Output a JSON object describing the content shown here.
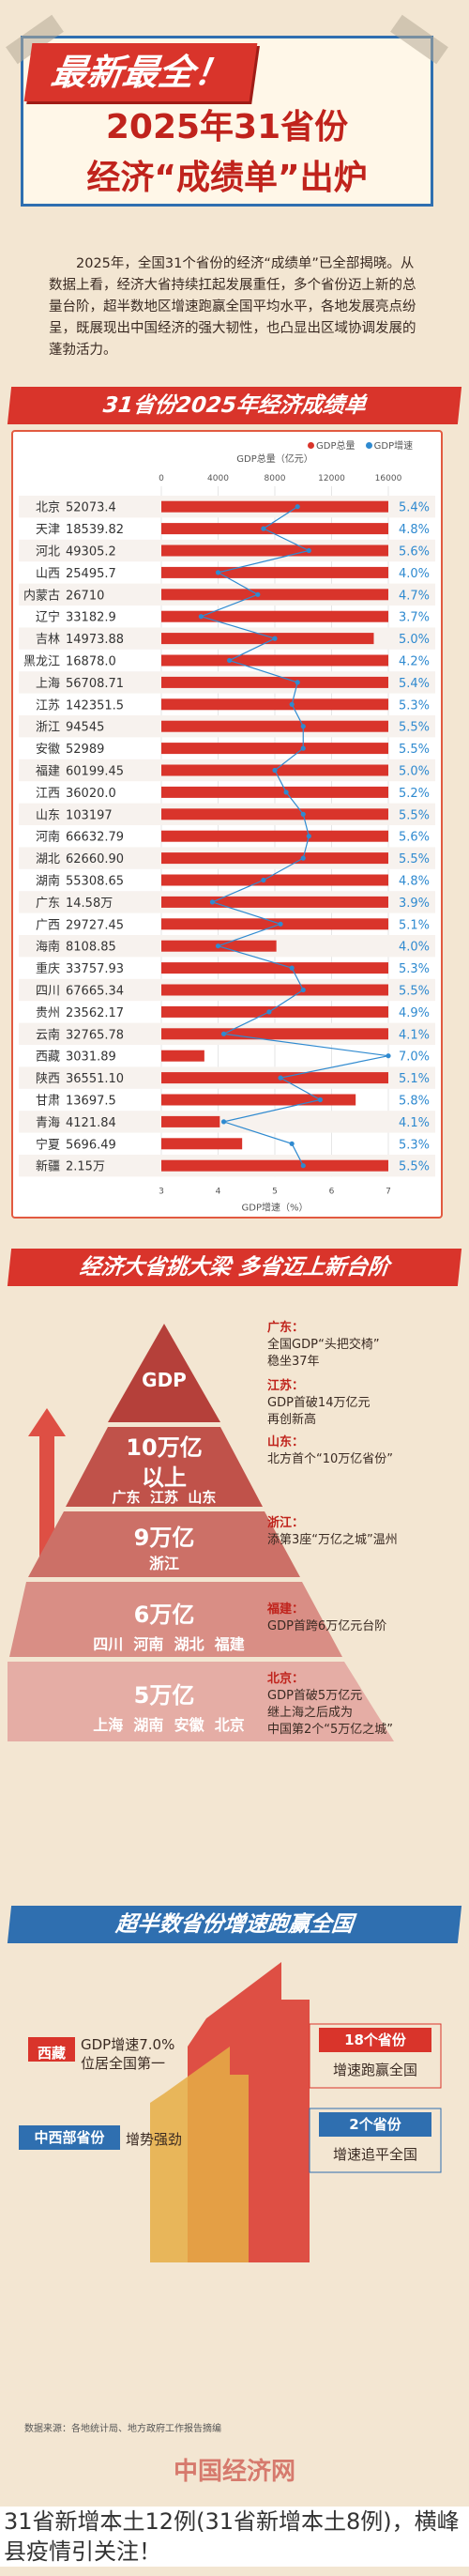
{
  "header": {
    "banner": "最新最全！",
    "title_line1": "2025年31省份",
    "title_line2": "经济“成绩单”出炉"
  },
  "intro": "2025年，全国31个省份的经济“成绩单”已全部揭晓。从数据上看，经济大省持续扛起发展重任，多个省份迈上新的总量台阶，超半数地区增速跑赢全国平均水平，各地发展亮点纷呈，既展现出中国经济的强大韧性，也凸显出区域协调发展的蓬勃活力。",
  "sections": {
    "chart_title": "31省份2025年经济成绩单",
    "pyramid_title": "经济大省挑大梁 多省迈上新台阶",
    "growth_title": "超半数省份增速跑赢全国"
  },
  "chart_data": {
    "type": "bar",
    "legend": [
      "GDP总量",
      "GDP增速"
    ],
    "xlabel_top": "GDP总量（亿元）",
    "xlabel_bottom": "GDP增速（%）",
    "top_ticks": [
      0,
      4000,
      8000,
      12000,
      16000
    ],
    "bottom_ticks": [
      3,
      4,
      5,
      6,
      7
    ],
    "categories": [
      "北京",
      "天津",
      "河北",
      "山西",
      "内蒙古",
      "辽宁",
      "吉林",
      "黑龙江",
      "上海",
      "江苏",
      "浙江",
      "安徽",
      "福建",
      "江西",
      "山东",
      "河南",
      "湖北",
      "湖南",
      "广东",
      "广西",
      "海南",
      "重庆",
      "四川",
      "贵州",
      "云南",
      "西藏",
      "陕西",
      "甘肃",
      "青海",
      "宁夏",
      "新疆"
    ],
    "gdp_labels": [
      "52073.4",
      "18539.82",
      "49305.2",
      "25495.7",
      "26710",
      "33182.9",
      "14973.88",
      "16878.0",
      "56708.71",
      "142351.5",
      "94545",
      "52989",
      "60199.45",
      "36020.0",
      "103197",
      "66632.79",
      "62660.90",
      "55308.65",
      "14.58万",
      "29727.45",
      "8108.85",
      "33757.93",
      "67665.34",
      "23562.17",
      "32765.78",
      "3031.89",
      "36551.10",
      "13697.5",
      "4121.84",
      "5696.49",
      "2.15万"
    ],
    "gdp_values": [
      52073.4,
      18539.82,
      49305.2,
      25495.7,
      26710,
      33182.9,
      14973.88,
      16878.0,
      56708.71,
      142351.5,
      94545,
      52989,
      60199.45,
      36020.0,
      103197,
      66632.79,
      62660.9,
      55308.65,
      145800,
      29727.45,
      8108.85,
      33757.93,
      67665.34,
      23562.17,
      32765.78,
      3031.89,
      36551.1,
      13697.5,
      4121.84,
      5696.49,
      21500
    ],
    "growth_labels": [
      "5.4%",
      "4.8%",
      "5.6%",
      "4.0%",
      "4.7%",
      "3.7%",
      "5.0%",
      "4.2%",
      "5.4%",
      "5.3%",
      "5.5%",
      "5.5%",
      "5.0%",
      "5.2%",
      "5.5%",
      "5.6%",
      "5.5%",
      "4.8%",
      "3.9%",
      "5.1%",
      "4.0%",
      "5.3%",
      "5.5%",
      "4.9%",
      "4.1%",
      "7.0%",
      "5.1%",
      "5.8%",
      "4.1%",
      "5.3%",
      "5.5%"
    ],
    "growth_values": [
      5.4,
      4.8,
      5.6,
      4.0,
      4.7,
      3.7,
      5.0,
      4.2,
      5.4,
      5.3,
      5.5,
      5.5,
      5.0,
      5.2,
      5.5,
      5.6,
      5.5,
      4.8,
      3.9,
      5.1,
      4.0,
      5.3,
      5.5,
      4.9,
      4.1,
      7.0,
      5.1,
      5.8,
      4.1,
      5.3,
      5.5
    ],
    "gdp_range": [
      0,
      16000
    ],
    "growth_range": [
      3,
      7
    ],
    "colors": {
      "gdp": "#d9342b",
      "growth": "#2f8ad0"
    }
  },
  "pyramid": {
    "top": "GDP",
    "tier1": {
      "value": "10万亿",
      "sub": "以上",
      "provinces": "广东  江苏  山东"
    },
    "tier2": {
      "value": "9万亿",
      "provinces": "浙江"
    },
    "tier3": {
      "value": "6万亿",
      "provinces": "四川  河南  湖北  福建"
    },
    "tier4": {
      "value": "5万亿",
      "provinces": "上海  湖南  安徽  北京"
    },
    "notes": [
      {
        "prov": "广东：",
        "lines": [
          "全国GDP“头把交椅”",
          "稳坐37年"
        ]
      },
      {
        "prov": "江苏：",
        "lines": [
          "GDP首破14万亿元",
          "再创新高"
        ]
      },
      {
        "prov": "山东：",
        "lines": [
          "北方首个“10万亿省份”"
        ]
      },
      {
        "prov": "浙江：",
        "lines": [
          "添第3座“万亿之城”温州"
        ]
      },
      {
        "prov": "福建：",
        "lines": [
          "GDP首跨6万亿元台阶"
        ]
      },
      {
        "prov": "北京：",
        "lines": [
          "GDP首破5万亿元",
          "继上海之后成为",
          "中国第2个“5万亿之城”"
        ]
      }
    ]
  },
  "growth": {
    "xizang_label": "西藏",
    "xizang_text_l1": "GDP增速7.0%",
    "xizang_text_l2": "位居全国第一",
    "mid_label": "中西部省份",
    "mid_text": "增势强劲",
    "box1_label": "18个省份",
    "box1_text": "增速跑赢全国",
    "box2_label": "2个省份",
    "box2_text": "增速追平全国"
  },
  "footer": {
    "source": "数据来源：各地统计局、地方政府工作报告摘编",
    "logo": "中国经济网",
    "caption": "31省新增本土12例(31省新增本土8例)，横峰县疫情引关注！"
  }
}
